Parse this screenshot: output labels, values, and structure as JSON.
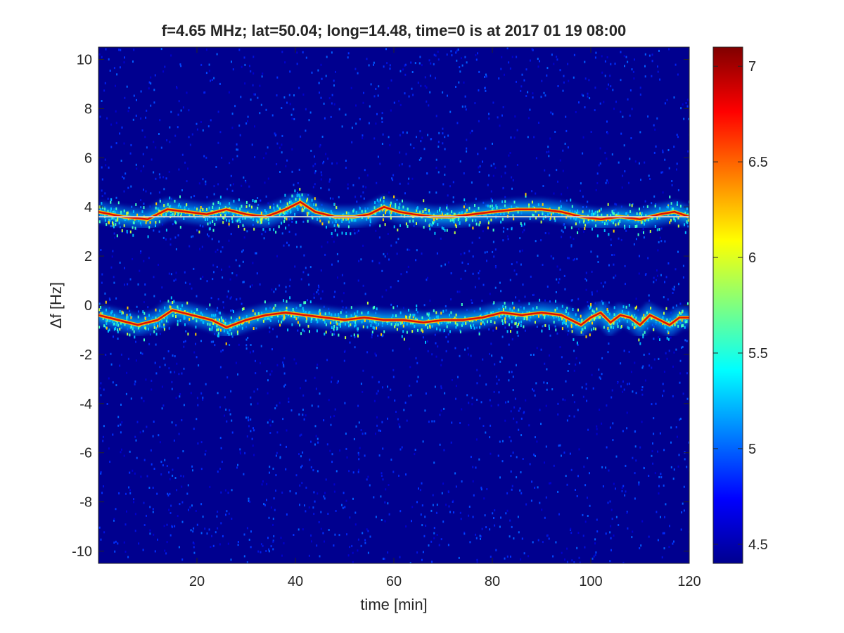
{
  "chart_data": {
    "type": "heatmap",
    "title": "f=4.65 MHz;  lat=50.04; long=14.48, time=0 is at 2017 01 19 08:00",
    "xlabel": "time [min]",
    "ylabel": "Δf [Hz]",
    "xlim": [
      0,
      120
    ],
    "ylim": [
      -10.5,
      10.5
    ],
    "xticks": [
      20,
      40,
      60,
      80,
      100,
      120
    ],
    "yticks": [
      -10,
      -8,
      -6,
      -4,
      -2,
      0,
      2,
      4,
      6,
      8,
      10
    ],
    "colormap": "jet",
    "clim": [
      4.4,
      7.1
    ],
    "colorbar_ticks": [
      4.5,
      5,
      5.5,
      6,
      6.5,
      7
    ],
    "reference_line": {
      "y": 3.6,
      "color": "#d0d0d0"
    },
    "traces": [
      {
        "label": "upper",
        "points": [
          [
            0,
            3.8
          ],
          [
            5,
            3.6
          ],
          [
            10,
            3.5
          ],
          [
            14,
            3.9
          ],
          [
            18,
            3.8
          ],
          [
            22,
            3.7
          ],
          [
            26,
            3.9
          ],
          [
            30,
            3.7
          ],
          [
            34,
            3.6
          ],
          [
            38,
            3.9
          ],
          [
            41,
            4.2
          ],
          [
            44,
            3.8
          ],
          [
            48,
            3.6
          ],
          [
            52,
            3.6
          ],
          [
            55,
            3.7
          ],
          [
            58,
            4.0
          ],
          [
            61,
            3.8
          ],
          [
            64,
            3.7
          ],
          [
            68,
            3.6
          ],
          [
            72,
            3.6
          ],
          [
            76,
            3.7
          ],
          [
            80,
            3.8
          ],
          [
            85,
            3.9
          ],
          [
            90,
            3.9
          ],
          [
            94,
            3.8
          ],
          [
            98,
            3.6
          ],
          [
            102,
            3.5
          ],
          [
            106,
            3.6
          ],
          [
            110,
            3.5
          ],
          [
            114,
            3.7
          ],
          [
            117,
            3.8
          ],
          [
            120,
            3.6
          ]
        ]
      },
      {
        "label": "lower",
        "points": [
          [
            0,
            -0.4
          ],
          [
            4,
            -0.6
          ],
          [
            8,
            -0.8
          ],
          [
            12,
            -0.6
          ],
          [
            15,
            -0.2
          ],
          [
            19,
            -0.4
          ],
          [
            23,
            -0.6
          ],
          [
            26,
            -0.9
          ],
          [
            30,
            -0.6
          ],
          [
            34,
            -0.4
          ],
          [
            38,
            -0.3
          ],
          [
            42,
            -0.4
          ],
          [
            46,
            -0.5
          ],
          [
            50,
            -0.6
          ],
          [
            54,
            -0.5
          ],
          [
            58,
            -0.6
          ],
          [
            62,
            -0.6
          ],
          [
            66,
            -0.7
          ],
          [
            70,
            -0.6
          ],
          [
            74,
            -0.6
          ],
          [
            78,
            -0.5
          ],
          [
            82,
            -0.3
          ],
          [
            86,
            -0.4
          ],
          [
            90,
            -0.3
          ],
          [
            94,
            -0.4
          ],
          [
            98,
            -0.8
          ],
          [
            100,
            -0.5
          ],
          [
            102,
            -0.3
          ],
          [
            104,
            -0.7
          ],
          [
            106,
            -0.4
          ],
          [
            108,
            -0.5
          ],
          [
            110,
            -0.8
          ],
          [
            112,
            -0.4
          ],
          [
            114,
            -0.6
          ],
          [
            116,
            -0.8
          ],
          [
            118,
            -0.5
          ],
          [
            120,
            -0.5
          ]
        ]
      }
    ]
  }
}
